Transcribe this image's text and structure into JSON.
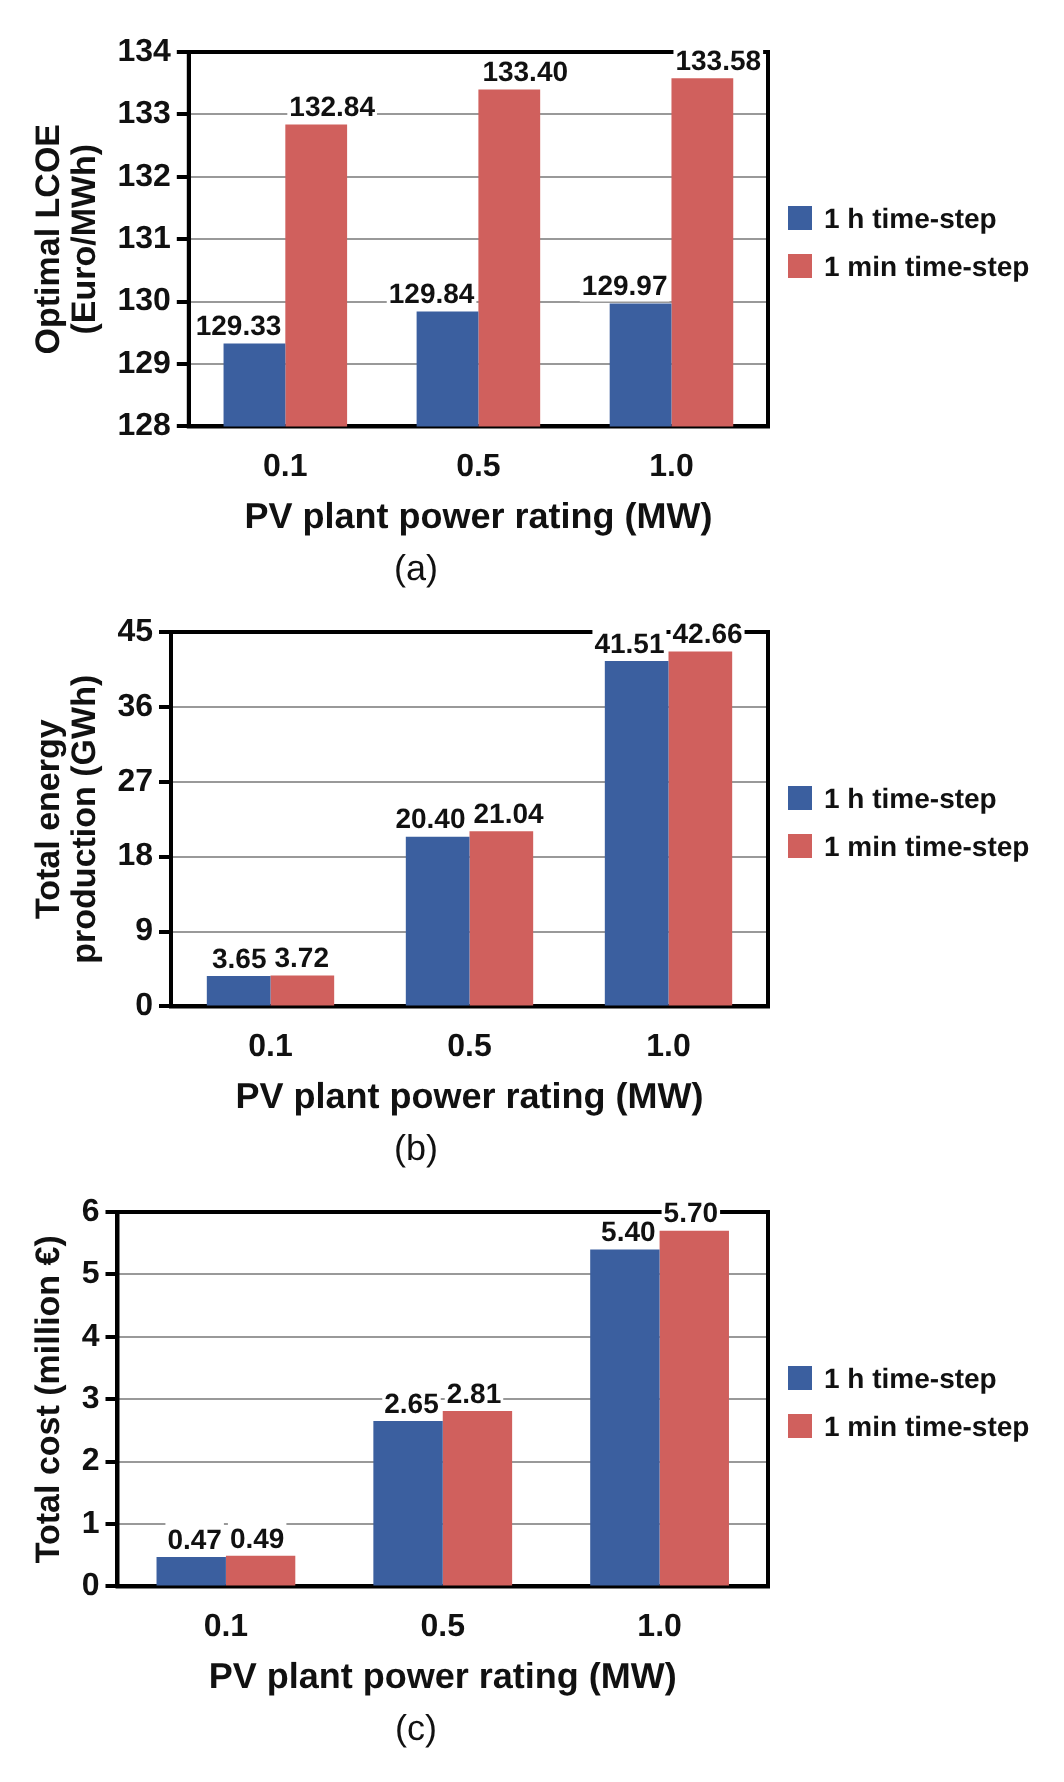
{
  "chart_data": [
    {
      "type": "bar",
      "xlabel": "PV plant power rating (MW)",
      "ylabel": "Optimal LCOE (Euro/MWh)",
      "categories": [
        "0.1",
        "0.5",
        "1.0"
      ],
      "series": [
        {
          "name": "1 h time-step",
          "color": "#3b5f9f",
          "values": [
            129.33,
            129.84,
            129.97
          ],
          "value_labels": [
            "129.33",
            "129.84",
            "129.97"
          ]
        },
        {
          "name": "1 min time-step",
          "color": "#d0605d",
          "values": [
            132.84,
            133.4,
            133.58
          ],
          "value_labels": [
            "132.84",
            "133.40",
            "133.58"
          ]
        }
      ],
      "ylim": [
        128,
        134
      ],
      "yticks": [
        128,
        129,
        130,
        131,
        132,
        133,
        134
      ],
      "grid": "y",
      "legend": "right",
      "annotations": [
        "(a)"
      ]
    },
    {
      "type": "bar",
      "xlabel": "PV plant power rating (MW)",
      "ylabel": "Total energy production (GWh)",
      "categories": [
        "0.1",
        "0.5",
        "1.0"
      ],
      "series": [
        {
          "name": "1 h time-step",
          "color": "#3b5f9f",
          "values": [
            3.65,
            20.4,
            41.51
          ],
          "value_labels": [
            "3.65",
            "20.40",
            "41.51"
          ]
        },
        {
          "name": "1 min time-step",
          "color": "#d0605d",
          "values": [
            3.72,
            21.04,
            42.66
          ],
          "value_labels": [
            "3.72",
            "21.04",
            "42.66"
          ]
        }
      ],
      "ylim": [
        0,
        45
      ],
      "yticks": [
        0,
        9,
        18,
        27,
        36,
        45
      ],
      "grid": "y",
      "legend": "right",
      "annotations": [
        "(b)"
      ]
    },
    {
      "type": "bar",
      "xlabel": "PV plant power rating (MW)",
      "ylabel": "Total cost (million €)",
      "categories": [
        "0.1",
        "0.5",
        "1.0"
      ],
      "series": [
        {
          "name": "1 h time-step",
          "color": "#3b5f9f",
          "values": [
            0.47,
            2.65,
            5.4
          ],
          "value_labels": [
            "0.47",
            "2.65",
            "5.40"
          ]
        },
        {
          "name": "1 min time-step",
          "color": "#d0605d",
          "values": [
            0.49,
            2.81,
            5.7
          ],
          "value_labels": [
            "0.49",
            "2.81",
            "5.70"
          ]
        }
      ],
      "ylim": [
        0,
        6
      ],
      "yticks": [
        0,
        1,
        2,
        3,
        4,
        5,
        6
      ],
      "grid": "y",
      "legend": "right",
      "annotations": [
        "(c)"
      ]
    }
  ]
}
